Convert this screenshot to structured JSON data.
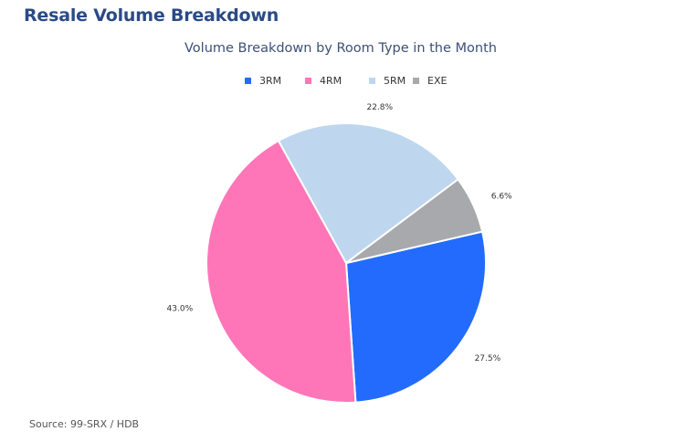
{
  "page": {
    "heading": "Resale Volume Breakdown",
    "source": "Source: 99-SRX / HDB"
  },
  "chart_data": {
    "type": "pie",
    "title": "Volume Breakdown by Room Type in the Month",
    "legend_position": "top",
    "start_angle_deg": 77,
    "slices": [
      {
        "label": "3RM",
        "value": 27.5,
        "display": "27.5%",
        "color": "#226bfd"
      },
      {
        "label": "4RM",
        "value": 43.0,
        "display": "43.0%",
        "color": "#ff76b8"
      },
      {
        "label": "5RM",
        "value": 22.8,
        "display": "22.8%",
        "color": "#bed7ef"
      },
      {
        "label": "EXE",
        "value": 6.6,
        "display": "6.6%",
        "color": "#a8a9ad"
      }
    ]
  }
}
